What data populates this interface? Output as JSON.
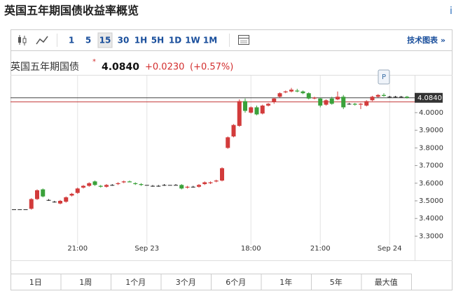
{
  "header": {
    "title": "英国五年期国债收益率概览",
    "info": "i"
  },
  "toolbar": {
    "intervals": [
      "1",
      "5",
      "15",
      "30",
      "1H",
      "5H",
      "1D",
      "1W",
      "1M"
    ],
    "tech_chart": "技术图表 »"
  },
  "quote": {
    "name": "英国五年期国债",
    "price": "4.0840",
    "change": "+0.0230",
    "change_pct": "(+0.57%)"
  },
  "chart_data": {
    "type": "candlestick",
    "categories": [
      null,
      null,
      null,
      null,
      null,
      null,
      null,
      null,
      null,
      null,
      null,
      "21:00",
      null,
      null,
      null,
      null,
      null,
      null,
      null,
      null,
      null,
      null,
      null,
      "Sep 23",
      null,
      null,
      null,
      null,
      null,
      null,
      null,
      null,
      null,
      null,
      null,
      null,
      null,
      null,
      null,
      null,
      null,
      "18:00",
      null,
      null,
      null,
      null,
      null,
      null,
      null,
      null,
      null,
      null,
      null,
      "21:00",
      null,
      null,
      null,
      null,
      null,
      null,
      null,
      null,
      null,
      null,
      null,
      "Sep 24",
      null,
      null,
      null
    ],
    "ohlc": [
      [
        3.452,
        3.452,
        3.452,
        3.452
      ],
      [
        3.452,
        3.452,
        3.452,
        3.452
      ],
      [
        3.452,
        3.452,
        3.452,
        3.452
      ],
      [
        3.455,
        3.515,
        3.45,
        3.51
      ],
      [
        3.51,
        3.565,
        3.505,
        3.56
      ],
      [
        3.565,
        3.57,
        3.52,
        3.525
      ],
      [
        3.505,
        3.51,
        3.5,
        3.505
      ],
      [
        3.495,
        3.5,
        3.49,
        3.495
      ],
      [
        3.485,
        3.505,
        3.48,
        3.5
      ],
      [
        3.495,
        3.525,
        3.49,
        3.52
      ],
      [
        3.53,
        3.545,
        3.525,
        3.54
      ],
      [
        3.545,
        3.575,
        3.54,
        3.57
      ],
      [
        3.575,
        3.59,
        3.57,
        3.585
      ],
      [
        3.585,
        3.605,
        3.58,
        3.6
      ],
      [
        3.61,
        3.615,
        3.585,
        3.59
      ],
      [
        3.585,
        3.59,
        3.575,
        3.58
      ],
      [
        3.58,
        3.595,
        3.575,
        3.59
      ],
      [
        3.59,
        3.595,
        3.585,
        3.59
      ],
      [
        3.595,
        3.605,
        3.59,
        3.6
      ],
      [
        3.605,
        3.615,
        3.6,
        3.61
      ],
      [
        3.61,
        3.615,
        3.605,
        3.605
      ],
      [
        3.6,
        3.605,
        3.59,
        3.595
      ],
      [
        3.595,
        3.6,
        3.585,
        3.59
      ],
      [
        3.59,
        3.59,
        3.59,
        3.59
      ],
      [
        3.585,
        3.59,
        3.58,
        3.585
      ],
      [
        3.585,
        3.59,
        3.58,
        3.585
      ],
      [
        3.59,
        3.595,
        3.585,
        3.59
      ],
      [
        3.59,
        3.59,
        3.59,
        3.59
      ],
      [
        3.59,
        3.595,
        3.59,
        3.59
      ],
      [
        3.59,
        3.595,
        3.565,
        3.57
      ],
      [
        3.575,
        3.585,
        3.57,
        3.58
      ],
      [
        3.58,
        3.585,
        3.575,
        3.58
      ],
      [
        3.58,
        3.595,
        3.575,
        3.59
      ],
      [
        3.595,
        3.61,
        3.59,
        3.605
      ],
      [
        3.6,
        3.61,
        3.595,
        3.605
      ],
      [
        3.61,
        3.62,
        3.605,
        3.615
      ],
      [
        3.615,
        3.69,
        3.61,
        3.685
      ],
      [
        3.8,
        3.865,
        3.795,
        3.86
      ],
      [
        3.865,
        3.935,
        3.86,
        3.93
      ],
      [
        3.925,
        4.075,
        3.92,
        4.065
      ],
      [
        4.065,
        4.08,
        4.0,
        4.01
      ],
      [
        4.0,
        4.035,
        3.995,
        4.03
      ],
      [
        4.03,
        4.04,
        3.985,
        3.99
      ],
      [
        3.995,
        4.045,
        3.99,
        4.04
      ],
      [
        4.04,
        4.055,
        4.035,
        4.05
      ],
      [
        4.06,
        4.085,
        4.05,
        4.08
      ],
      [
        4.09,
        4.115,
        4.085,
        4.11
      ],
      [
        4.115,
        4.125,
        4.11,
        4.12
      ],
      [
        4.12,
        4.14,
        4.115,
        4.13
      ],
      [
        4.125,
        4.135,
        4.115,
        4.12
      ],
      [
        4.12,
        4.125,
        4.105,
        4.11
      ],
      [
        4.11,
        4.115,
        4.075,
        4.08
      ],
      [
        4.08,
        4.09,
        4.075,
        4.085
      ],
      [
        4.08,
        4.085,
        4.03,
        4.04
      ],
      [
        4.045,
        4.075,
        4.04,
        4.07
      ],
      [
        4.08,
        4.09,
        4.045,
        4.05
      ],
      [
        4.075,
        4.12,
        4.07,
        4.09
      ],
      [
        4.09,
        4.1,
        4.02,
        4.03
      ],
      [
        4.05,
        4.055,
        4.045,
        4.05
      ],
      [
        4.05,
        4.055,
        4.04,
        4.045
      ],
      [
        4.045,
        4.055,
        4.02,
        4.05
      ],
      [
        4.04,
        4.07,
        4.035,
        4.065
      ],
      [
        4.07,
        4.095,
        4.065,
        4.09
      ],
      [
        4.09,
        4.105,
        4.085,
        4.1
      ],
      [
        4.1,
        4.11,
        4.09,
        4.095
      ],
      [
        4.09,
        4.095,
        4.085,
        4.09
      ],
      [
        4.09,
        4.095,
        4.085,
        4.09
      ],
      [
        4.09,
        4.095,
        4.085,
        4.09
      ],
      [
        4.09,
        4.095,
        4.08,
        4.084
      ]
    ],
    "up_color": "#d23b3b",
    "down_color": "#3aa13a",
    "flat_color": "#222",
    "ylim": [
      3.27,
      4.21
    ],
    "yticks": [
      {
        "value": 3.3,
        "label": "3.3000"
      },
      {
        "value": 3.4,
        "label": "3.4000"
      },
      {
        "value": 3.5,
        "label": "3.5000"
      },
      {
        "value": 3.6,
        "label": "3.6000"
      },
      {
        "value": 3.7,
        "label": "3.7000"
      },
      {
        "value": 3.8,
        "label": "3.8000"
      },
      {
        "value": 3.9,
        "label": "3.9000"
      },
      {
        "value": 4.0,
        "label": "4.0000"
      }
    ],
    "price_line": {
      "value": 4.084,
      "label": "4.0840"
    },
    "prev_close": 4.061,
    "marker": {
      "index": 64,
      "label": "P"
    },
    "grid": true
  },
  "ranges": [
    "1日",
    "1周",
    "1个月",
    "3个月",
    "6个月",
    "1年",
    "5年",
    "最大值"
  ]
}
